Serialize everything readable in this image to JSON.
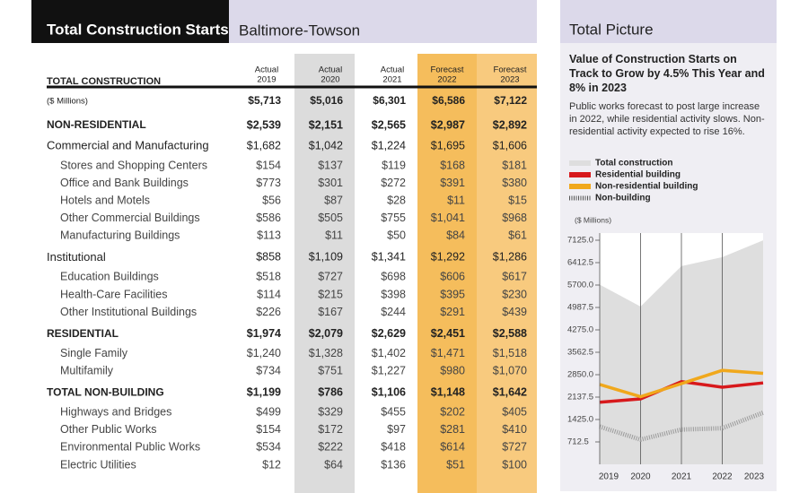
{
  "header": {
    "title": "Total Construction Starts",
    "region": "Baltimore-Towson"
  },
  "table": {
    "heading": "TOTAL CONSTRUCTION",
    "columns": [
      {
        "status": "Actual",
        "year": "2019"
      },
      {
        "status": "Actual",
        "year": "2020"
      },
      {
        "status": "Actual",
        "year": "2021"
      },
      {
        "status": "Forecast",
        "year": "2022"
      },
      {
        "status": "Forecast",
        "year": "2023"
      }
    ],
    "total": {
      "label": "($ Millions)",
      "values": [
        "$5,713",
        "$5,016",
        "$6,301",
        "$6,586",
        "$7,122"
      ]
    },
    "sections": [
      {
        "label": "NON-RESIDENTIAL",
        "values": [
          "$2,539",
          "$2,151",
          "$2,565",
          "$2,987",
          "$2,892"
        ],
        "groups": [
          {
            "label": "Commercial and Manufacturing",
            "values": [
              "$1,682",
              "$1,042",
              "$1,224",
              "$1,695",
              "$1,606"
            ],
            "items": [
              {
                "label": "Stores and Shopping Centers",
                "values": [
                  "$154",
                  "$137",
                  "$119",
                  "$168",
                  "$181"
                ]
              },
              {
                "label": "Office and Bank Buildings",
                "values": [
                  "$773",
                  "$301",
                  "$272",
                  "$391",
                  "$380"
                ]
              },
              {
                "label": "Hotels and Motels",
                "values": [
                  "$56",
                  "$87",
                  "$28",
                  "$11",
                  "$15"
                ]
              },
              {
                "label": "Other Commercial Buildings",
                "values": [
                  "$586",
                  "$505",
                  "$755",
                  "$1,041",
                  "$968"
                ]
              },
              {
                "label": "Manufacturing Buildings",
                "values": [
                  "$113",
                  "$11",
                  "$50",
                  "$84",
                  "$61"
                ]
              }
            ]
          },
          {
            "label": "Institutional",
            "values": [
              "$858",
              "$1,109",
              "$1,341",
              "$1,292",
              "$1,286"
            ],
            "items": [
              {
                "label": "Education Buildings",
                "values": [
                  "$518",
                  "$727",
                  "$698",
                  "$606",
                  "$617"
                ]
              },
              {
                "label": "Health-Care Facilities",
                "values": [
                  "$114",
                  "$215",
                  "$398",
                  "$395",
                  "$230"
                ]
              },
              {
                "label": "Other Institutional Buildings",
                "values": [
                  "$226",
                  "$167",
                  "$244",
                  "$291",
                  "$439"
                ]
              }
            ]
          }
        ]
      },
      {
        "label": "RESIDENTIAL",
        "values": [
          "$1,974",
          "$2,079",
          "$2,629",
          "$2,451",
          "$2,588"
        ],
        "items": [
          {
            "label": "Single Family",
            "values": [
              "$1,240",
              "$1,328",
              "$1,402",
              "$1,471",
              "$1,518"
            ]
          },
          {
            "label": "Multifamily",
            "values": [
              "$734",
              "$751",
              "$1,227",
              "$980",
              "$1,070"
            ]
          }
        ]
      },
      {
        "label": "TOTAL NON-BUILDING",
        "values": [
          "$1,199",
          "$786",
          "$1,106",
          "$1,148",
          "$1,642"
        ],
        "items": [
          {
            "label": "Highways and Bridges",
            "values": [
              "$499",
              "$329",
              "$455",
              "$202",
              "$405"
            ]
          },
          {
            "label": "Other Public Works",
            "values": [
              "$154",
              "$172",
              "$97",
              "$281",
              "$410"
            ]
          },
          {
            "label": "Environmental Public Works",
            "values": [
              "$534",
              "$222",
              "$418",
              "$614",
              "$727"
            ]
          },
          {
            "label": "Electric Utilities",
            "values": [
              "$12",
              "$64",
              "$136",
              "$51",
              "$100"
            ]
          }
        ]
      }
    ]
  },
  "sidebar": {
    "title": "Total Picture",
    "heading": "Value of Construction Starts on Track to Grow by 4.5% This Year and 8% in 2023",
    "body": "Public works forecast to post large increase in 2022, while residential activity slows. Non-residential activity expected to rise 16%."
  },
  "chart_data": {
    "type": "line",
    "ylabel": "($ Millions)",
    "categories": [
      "2019",
      "2020",
      "2021",
      "2022",
      "2023"
    ],
    "series": [
      {
        "name": "Total construction",
        "color": "#dedede",
        "style": "area",
        "values": [
          5713,
          5016,
          6301,
          6586,
          7122
        ]
      },
      {
        "name": "Residential building",
        "color": "#d7191c",
        "style": "line",
        "values": [
          1974,
          2079,
          2629,
          2451,
          2588
        ]
      },
      {
        "name": "Non-residential building",
        "color": "#f0a81c",
        "style": "line",
        "values": [
          2539,
          2151,
          2565,
          2987,
          2892
        ]
      },
      {
        "name": "Non-building",
        "color": "#9a9a9a",
        "style": "hatched",
        "values": [
          1199,
          786,
          1106,
          1148,
          1642
        ]
      }
    ],
    "ylim": [
      0,
      7125
    ],
    "yticks": [
      712.5,
      {
        "value": 1425,
        "label": "1425.0"
      },
      2137.5,
      {
        "value": 2850,
        "label": "2850.0"
      },
      3562.5,
      {
        "value": 4275,
        "label": "4275.0"
      },
      4987.5,
      {
        "value": 5700,
        "label": "5700.0"
      },
      6412.5,
      {
        "value": 7125,
        "label": "7125.0"
      }
    ],
    "grid": true
  }
}
